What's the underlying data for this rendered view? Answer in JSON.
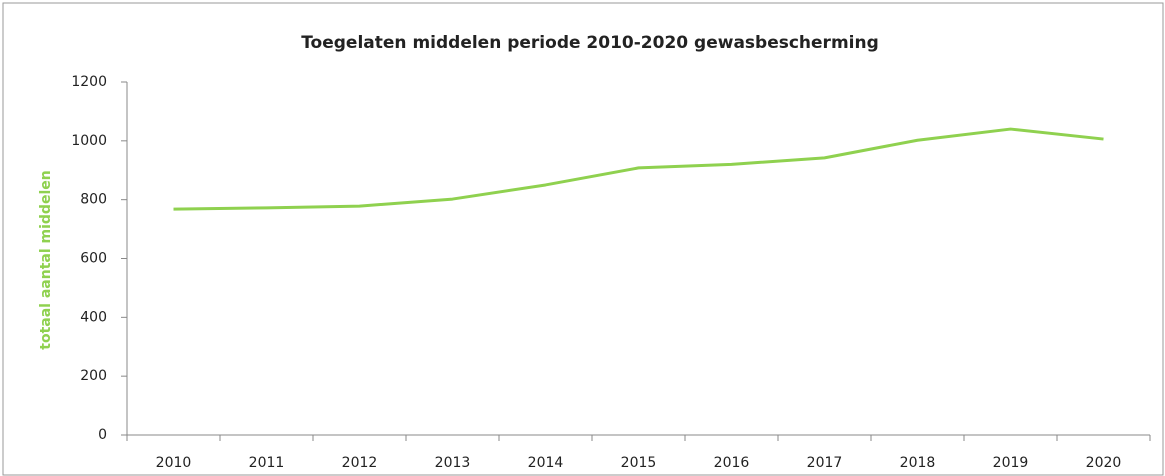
{
  "chart_data": {
    "type": "line",
    "title": "Toegelaten middelen periode 2010-2020 gewasbescherming",
    "y_label": "totaal aantal middelen",
    "categories": [
      "2010",
      "2011",
      "2012",
      "2013",
      "2014",
      "2015",
      "2016",
      "2017",
      "2018",
      "2019",
      "2020"
    ],
    "series": [
      {
        "name": "totaal aantal middelen",
        "color": "#8fd14f",
        "values": [
          768,
          772,
          778,
          802,
          850,
          908,
          920,
          942,
          1002,
          1040,
          1006
        ]
      }
    ],
    "ylim": [
      0,
      1200
    ],
    "yticks": [
      0,
      200,
      400,
      600,
      800,
      1000,
      1200
    ],
    "grid": false
  }
}
